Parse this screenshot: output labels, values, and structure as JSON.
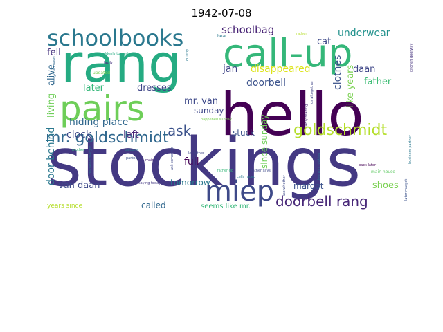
{
  "title": "1942-07-08",
  "words": [
    {
      "text": "stockings",
      "color": "#443983"
    },
    {
      "text": "hello",
      "color": "#440154"
    },
    {
      "text": "rang",
      "color": "#25ab82"
    },
    {
      "text": "call-up",
      "color": "#35b779"
    },
    {
      "text": "pairs",
      "color": "#6ece58"
    },
    {
      "text": "schoolbooks",
      "color": "#2a788e"
    },
    {
      "text": "miep",
      "color": "#3e4a89"
    },
    {
      "text": "mr. goldschmidt",
      "color": "#31688e"
    },
    {
      "text": "goldschmidt",
      "color": "#b5de2b"
    },
    {
      "text": "doorbell rang",
      "color": "#482878"
    },
    {
      "text": "ask",
      "color": "#3b528b"
    },
    {
      "text": "schoolbag",
      "color": "#482475"
    },
    {
      "text": "underwear",
      "color": "#21918c"
    },
    {
      "text": "cat",
      "color": "#3e4989"
    },
    {
      "text": "fell",
      "color": "#46337e"
    },
    {
      "text": "jan",
      "color": "#404688"
    },
    {
      "text": "disappeared",
      "color": "#dde318"
    },
    {
      "text": "daan",
      "color": "#3f4788"
    },
    {
      "text": "doorbell",
      "color": "#3b528b"
    },
    {
      "text": "father",
      "color": "#3dbc74"
    },
    {
      "text": "alive",
      "color": "#31688e"
    },
    {
      "text": "living",
      "color": "#6ece58"
    },
    {
      "text": "later",
      "color": "#35b779"
    },
    {
      "text": "dresses",
      "color": "#404688"
    },
    {
      "text": "clothes",
      "color": "#3b528b"
    },
    {
      "text": "like years",
      "color": "#7ad151"
    },
    {
      "text": "mr. van",
      "color": "#3e4989"
    },
    {
      "text": "sunday",
      "color": "#3f4788"
    },
    {
      "text": "hiding place",
      "color": "#31688e"
    },
    {
      "text": "door behind",
      "color": "#2a788e"
    },
    {
      "text": "clock",
      "color": "#3e4a89"
    },
    {
      "text": "left",
      "color": "#482878"
    },
    {
      "text": "stuck",
      "color": "#3b528b"
    },
    {
      "text": "since sunday",
      "color": "#6ece58"
    },
    {
      "text": "full",
      "color": "#440154"
    },
    {
      "text": "van daan",
      "color": "#3e4a89"
    },
    {
      "text": "tomorrow",
      "color": "#2a788e"
    },
    {
      "text": "margot",
      "color": "#3b528b"
    },
    {
      "text": "shoes",
      "color": "#7ad151"
    },
    {
      "text": "called",
      "color": "#31688e"
    },
    {
      "text": "seems like mr.",
      "color": "#35b779"
    },
    {
      "text": "years since",
      "color": "#b5de2b"
    },
    {
      "text": "hear",
      "color": "#2a788e"
    },
    {
      "text": "suddenly turned",
      "color": "#25ab82"
    },
    {
      "text": "lazily",
      "color": "#46337e"
    },
    {
      "text": "updated",
      "color": "#7ad151"
    },
    {
      "text": "saying today",
      "color": "#443983"
    },
    {
      "text": "balcony",
      "color": "#2a788e"
    },
    {
      "text": "declared margot",
      "color": "#31688e"
    },
    {
      "text": "partner",
      "color": "#3b528b"
    },
    {
      "text": "main",
      "color": "#482475"
    },
    {
      "text": "let father",
      "color": "#404688"
    },
    {
      "text": "father go",
      "color": "#35b779"
    },
    {
      "text": "cells raced",
      "color": "#2a788e"
    },
    {
      "text": "father says",
      "color": "#3e4989"
    },
    {
      "text": "back later",
      "color": "#440154"
    },
    {
      "text": "main house",
      "color": "#5ec962"
    },
    {
      "text": "later margot",
      "color": "#3b528b"
    },
    {
      "text": "kitchen doorway",
      "color": "#46337e"
    },
    {
      "text": "lazily reading",
      "color": "#482878"
    },
    {
      "text": "doorway looking",
      "color": "#31688e"
    },
    {
      "text": "ask whether",
      "color": "#3e4a89"
    },
    {
      "text": "us altogether",
      "color": "#404688"
    },
    {
      "text": "business partner",
      "color": "#2a788e"
    },
    {
      "text": "mother",
      "color": "#35b779"
    },
    {
      "text": "happened sunday",
      "color": "#7ad151"
    },
    {
      "text": "everyone knows",
      "color": "#31688e"
    },
    {
      "text": "ask tomorrow",
      "color": "#3e4989"
    },
    {
      "text": "rather",
      "color": "#b5de2b"
    },
    {
      "text": "quietly",
      "color": "#2a788e"
    }
  ]
}
